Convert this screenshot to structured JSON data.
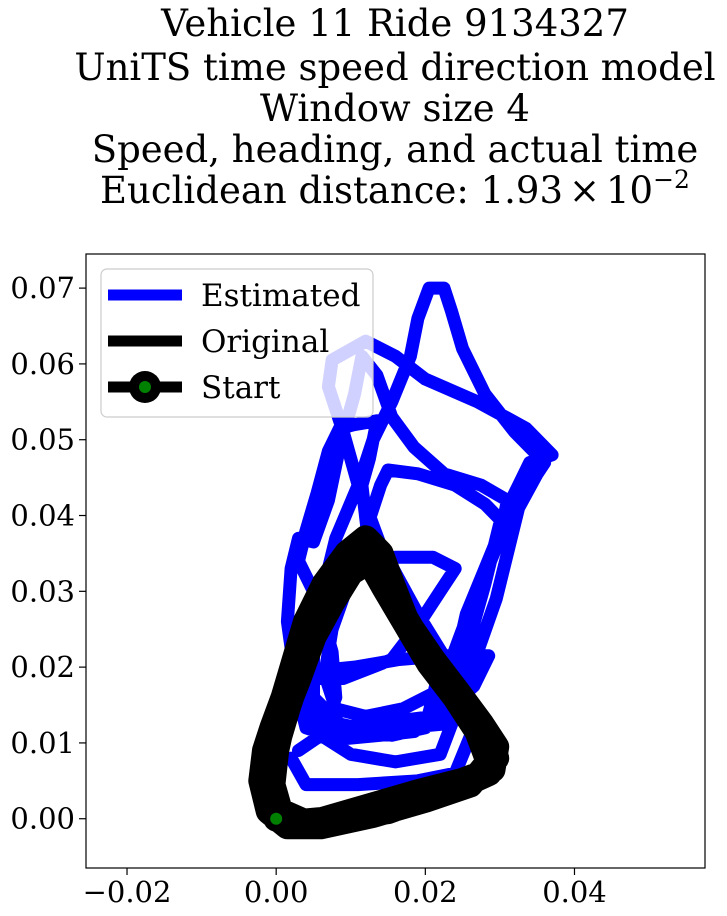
{
  "chart_data": {
    "type": "line",
    "title_lines": [
      "Vehicle 11 Ride 9134327",
      "UniTS time speed direction model",
      "Window size 4",
      "Speed, heading, and actual time"
    ],
    "title_distance": {
      "prefix": "Euclidean distance: ",
      "mantissa": "1.93",
      "times": "×",
      "base": "10",
      "exponent": "−2"
    },
    "xlabel": "",
    "ylabel": "",
    "xlim": [
      -0.0255,
      0.0575
    ],
    "ylim": [
      -0.0065,
      0.0745
    ],
    "xticks": [
      -0.02,
      0.0,
      0.02,
      0.04
    ],
    "xtick_labels": [
      "−0.02",
      "0.00",
      "0.02",
      "0.04"
    ],
    "yticks": [
      0.0,
      0.01,
      0.02,
      0.03,
      0.04,
      0.05,
      0.06,
      0.07
    ],
    "ytick_labels": [
      "0.00",
      "0.01",
      "0.02",
      "0.03",
      "0.04",
      "0.05",
      "0.06",
      "0.07"
    ],
    "legend": {
      "placement": "top-left",
      "entries": [
        {
          "label": "Estimated",
          "color": "#0000ff",
          "style": "line"
        },
        {
          "label": "Original",
          "color": "#000000",
          "style": "line"
        },
        {
          "label": "Start",
          "color": "#000000",
          "marker_color": "#008000",
          "style": "line-marker"
        }
      ]
    },
    "series": [
      {
        "name": "Estimated",
        "color": "#0000ff",
        "points": [
          [
            0.002,
            0.008
          ],
          [
            0.004,
            0.0045
          ],
          [
            0.011,
            0.0045
          ],
          [
            0.019,
            0.005
          ],
          [
            0.024,
            0.006
          ],
          [
            0.0265,
            0.012
          ],
          [
            0.024,
            0.019
          ],
          [
            0.019,
            0.027
          ],
          [
            0.014,
            0.036
          ],
          [
            0.011,
            0.044
          ],
          [
            0.009,
            0.051
          ],
          [
            0.007,
            0.057
          ],
          [
            0.0075,
            0.0605
          ],
          [
            0.012,
            0.063
          ],
          [
            0.016,
            0.061
          ],
          [
            0.02,
            0.058
          ],
          [
            0.027,
            0.055
          ],
          [
            0.0335,
            0.0515
          ],
          [
            0.037,
            0.048
          ],
          [
            0.034,
            0.047
          ],
          [
            0.0325,
            0.044
          ],
          [
            0.03,
            0.039
          ],
          [
            0.028,
            0.031
          ],
          [
            0.026,
            0.024
          ],
          [
            0.0245,
            0.015
          ],
          [
            0.022,
            0.0085
          ],
          [
            0.016,
            0.0075
          ],
          [
            0.01,
            0.0085
          ],
          [
            0.006,
            0.011
          ],
          [
            0.005,
            0.016
          ],
          [
            0.005,
            0.022
          ],
          [
            0.006,
            0.029
          ],
          [
            0.008,
            0.037
          ],
          [
            0.011,
            0.044
          ],
          [
            0.013,
            0.05
          ],
          [
            0.0155,
            0.055
          ],
          [
            0.018,
            0.061
          ],
          [
            0.019,
            0.066
          ],
          [
            0.0205,
            0.07
          ],
          [
            0.0225,
            0.07
          ],
          [
            0.0235,
            0.067
          ],
          [
            0.025,
            0.062
          ],
          [
            0.028,
            0.056
          ],
          [
            0.032,
            0.051
          ],
          [
            0.036,
            0.047
          ],
          [
            0.035,
            0.0455
          ],
          [
            0.0325,
            0.041
          ],
          [
            0.031,
            0.035
          ],
          [
            0.0295,
            0.029
          ],
          [
            0.027,
            0.022
          ],
          [
            0.0255,
            0.016
          ],
          [
            0.0225,
            0.0125
          ],
          [
            0.017,
            0.012
          ],
          [
            0.011,
            0.0115
          ],
          [
            0.007,
            0.012
          ],
          [
            0.004,
            0.014
          ],
          [
            0.0025,
            0.019
          ],
          [
            0.0015,
            0.026
          ],
          [
            0.002,
            0.033
          ],
          [
            0.003,
            0.037
          ],
          [
            0.005,
            0.0365
          ],
          [
            0.007,
            0.042
          ],
          [
            0.0085,
            0.049
          ],
          [
            0.0105,
            0.056
          ],
          [
            0.0115,
            0.061
          ],
          [
            0.0135,
            0.0585
          ],
          [
            0.0155,
            0.053
          ],
          [
            0.0185,
            0.049
          ],
          [
            0.0225,
            0.0455
          ],
          [
            0.0275,
            0.044
          ],
          [
            0.031,
            0.042
          ],
          [
            0.03,
            0.037
          ],
          [
            0.0275,
            0.031
          ],
          [
            0.025,
            0.025
          ],
          [
            0.022,
            0.017
          ],
          [
            0.017,
            0.0145
          ],
          [
            0.012,
            0.0135
          ],
          [
            0.008,
            0.0145
          ],
          [
            0.0065,
            0.019
          ],
          [
            0.0075,
            0.025
          ],
          [
            0.01,
            0.032
          ],
          [
            0.012,
            0.038
          ],
          [
            0.014,
            0.044
          ],
          [
            0.015,
            0.046
          ],
          [
            0.019,
            0.0455
          ],
          [
            0.024,
            0.044
          ],
          [
            0.028,
            0.0415
          ],
          [
            0.0305,
            0.039
          ],
          [
            0.028,
            0.033
          ],
          [
            0.0255,
            0.027
          ],
          [
            0.024,
            0.0205
          ],
          [
            0.0225,
            0.0165
          ],
          [
            0.021,
            0.0135
          ],
          [
            0.013,
            0.0125
          ],
          [
            0.008,
            0.012
          ],
          [
            0.0055,
            0.0135
          ],
          [
            0.004,
            0.019
          ],
          [
            0.003,
            0.026
          ],
          [
            0.006,
            0.031
          ],
          [
            0.0115,
            0.0335
          ],
          [
            0.016,
            0.0345
          ],
          [
            0.021,
            0.0345
          ],
          [
            0.024,
            0.033
          ],
          [
            0.022,
            0.03
          ],
          [
            0.019,
            0.0255
          ],
          [
            0.0155,
            0.021
          ],
          [
            0.009,
            0.0185
          ],
          [
            0.0045,
            0.0185
          ],
          [
            0.003,
            0.016
          ],
          [
            0.004,
            0.012
          ],
          [
            0.0085,
            0.0105
          ],
          [
            0.014,
            0.011
          ],
          [
            0.0185,
            0.0115
          ],
          [
            0.023,
            0.0145
          ],
          [
            0.0265,
            0.0175
          ],
          [
            0.0285,
            0.0215
          ],
          [
            0.0225,
            0.0215
          ],
          [
            0.0165,
            0.021
          ],
          [
            0.0105,
            0.02
          ],
          [
            0.0055,
            0.0195
          ],
          [
            0.0045,
            0.0165
          ],
          [
            0.0085,
            0.0125
          ],
          [
            0.0155,
            0.011
          ],
          [
            0.02,
            0.012
          ],
          [
            0.0215,
            0.018
          ],
          [
            0.018,
            0.023
          ],
          [
            0.0155,
            0.0285
          ],
          [
            0.0125,
            0.0355
          ],
          [
            0.0115,
            0.044
          ],
          [
            0.0125,
            0.0475
          ],
          [
            0.0135,
            0.0525
          ],
          [
            0.0105,
            0.052
          ],
          [
            0.0085,
            0.0515
          ],
          [
            0.007,
            0.0485
          ],
          [
            0.0055,
            0.043
          ],
          [
            0.004,
            0.038
          ],
          [
            0.003,
            0.034
          ],
          [
            0.0055,
            0.029
          ],
          [
            0.0075,
            0.022
          ],
          [
            0.008,
            0.016
          ],
          [
            0.006,
            0.011
          ],
          [
            0.003,
            0.009
          ]
        ]
      },
      {
        "name": "Original",
        "color": "#000000",
        "points": [
          [
            0.0,
            0.0
          ],
          [
            0.005,
            -0.0005
          ],
          [
            0.012,
            0.0015
          ],
          [
            0.019,
            0.0035
          ],
          [
            0.025,
            0.005
          ],
          [
            0.029,
            0.0065
          ],
          [
            0.0295,
            0.0095
          ],
          [
            0.0275,
            0.0125
          ],
          [
            0.0245,
            0.0165
          ],
          [
            0.021,
            0.021
          ],
          [
            0.0175,
            0.026
          ],
          [
            0.0155,
            0.031
          ],
          [
            0.014,
            0.035
          ],
          [
            0.012,
            0.037
          ],
          [
            0.0095,
            0.035
          ],
          [
            0.0065,
            0.031
          ],
          [
            0.004,
            0.026
          ],
          [
            0.0025,
            0.021
          ],
          [
            0.001,
            0.016
          ],
          [
            -0.0005,
            0.012
          ],
          [
            -0.0015,
            0.009
          ],
          [
            -0.002,
            0.005
          ],
          [
            -0.001,
            0.001
          ],
          [
            0.0015,
            -0.001
          ],
          [
            0.006,
            -0.001
          ],
          [
            0.013,
            0.0005
          ],
          [
            0.02,
            0.0025
          ],
          [
            0.026,
            0.0045
          ],
          [
            0.0285,
            0.0075
          ],
          [
            0.027,
            0.0115
          ],
          [
            0.024,
            0.016
          ],
          [
            0.0205,
            0.0205
          ],
          [
            0.0175,
            0.0255
          ],
          [
            0.0145,
            0.0305
          ],
          [
            0.0125,
            0.034
          ],
          [
            0.01,
            0.0325
          ],
          [
            0.0075,
            0.0285
          ],
          [
            0.005,
            0.024
          ],
          [
            0.003,
            0.0185
          ],
          [
            0.001,
            0.0135
          ],
          [
            0.0,
            0.009
          ],
          [
            -0.0005,
            0.0045
          ],
          [
            0.0005,
            0.001
          ],
          [
            0.004,
            -0.0005
          ],
          [
            0.0115,
            0.0005
          ],
          [
            0.018,
            0.002
          ],
          [
            0.024,
            0.004
          ],
          [
            0.0285,
            0.006
          ],
          [
            0.029,
            0.0085
          ],
          [
            0.026,
            0.0135
          ],
          [
            0.0225,
            0.018
          ],
          [
            0.019,
            0.0235
          ],
          [
            0.016,
            0.0285
          ],
          [
            0.0135,
            0.033
          ],
          [
            0.0115,
            0.036
          ],
          [
            0.0085,
            0.0335
          ],
          [
            0.0055,
            0.0275
          ],
          [
            0.0035,
            0.022
          ],
          [
            0.0015,
            0.016
          ],
          [
            -0.0005,
            0.0105
          ],
          [
            -0.0015,
            0.006
          ],
          [
            -0.0005,
            0.0015
          ],
          [
            0.0025,
            -0.0005
          ],
          [
            0.008,
            0.0
          ],
          [
            0.015,
            0.001
          ],
          [
            0.022,
            0.0035
          ],
          [
            0.027,
            0.0055
          ],
          [
            0.0295,
            0.008
          ],
          [
            0.0285,
            0.0105
          ],
          [
            0.0255,
            0.0145
          ],
          [
            0.022,
            0.0195
          ],
          [
            0.0185,
            0.0245
          ],
          [
            0.0155,
            0.0295
          ],
          [
            0.0135,
            0.0335
          ],
          [
            0.0115,
            0.0355
          ],
          [
            0.009,
            0.0325
          ],
          [
            0.006,
            0.027
          ],
          [
            0.0035,
            0.0205
          ],
          [
            0.0015,
            0.0145
          ],
          [
            0.0,
            0.0095
          ],
          [
            -0.001,
            0.005
          ],
          [
            0.0,
            0.0015
          ],
          [
            0.002,
            0.0
          ]
        ]
      }
    ],
    "start_point": [
      0.0,
      0.0
    ],
    "start_marker_color": "#008000"
  }
}
